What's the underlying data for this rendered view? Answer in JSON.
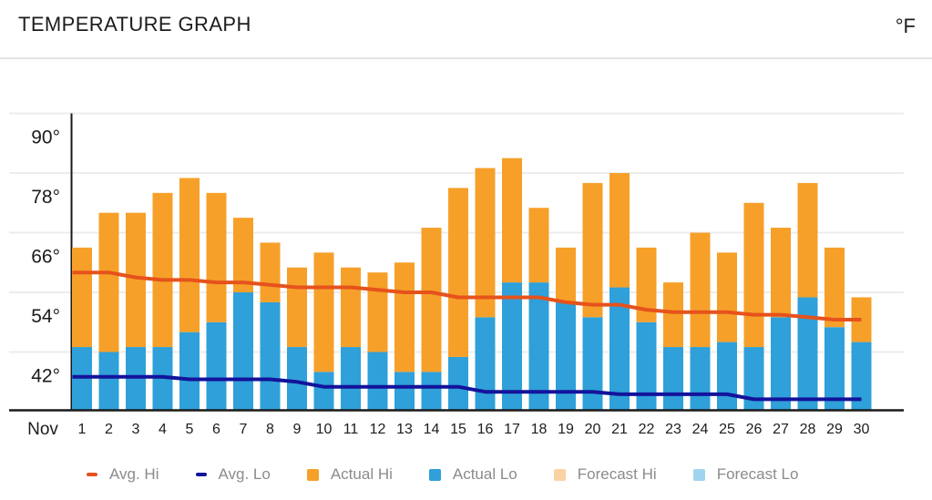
{
  "header": {
    "title": "TEMPERATURE GRAPH",
    "unit_label": "°F"
  },
  "y_axis": {
    "tick_labels": [
      "90°",
      "78°",
      "66°",
      "54°",
      "42°"
    ],
    "tick_values": [
      90,
      78,
      66,
      54,
      42
    ]
  },
  "x_axis": {
    "month_label": "Nov",
    "day_labels": [
      "1",
      "2",
      "3",
      "4",
      "5",
      "6",
      "7",
      "8",
      "9",
      "10",
      "11",
      "12",
      "13",
      "14",
      "15",
      "16",
      "17",
      "18",
      "19",
      "20",
      "21",
      "22",
      "23",
      "24",
      "25",
      "26",
      "27",
      "28",
      "29",
      "30"
    ]
  },
  "legend": {
    "items": [
      {
        "id": "avg-hi",
        "label": "Avg. Hi",
        "marker": "line",
        "color": "#E6521C"
      },
      {
        "id": "avg-lo",
        "label": "Avg. Lo",
        "marker": "line",
        "color": "#13139B"
      },
      {
        "id": "actual-hi",
        "label": "Actual Hi",
        "marker": "square",
        "color": "#F6A029"
      },
      {
        "id": "actual-lo",
        "label": "Actual Lo",
        "marker": "square",
        "color": "#2FA0D9"
      },
      {
        "id": "forecast-hi",
        "label": "Forecast Hi",
        "marker": "square",
        "color": "#FAD3A3"
      },
      {
        "id": "forecast-lo",
        "label": "Forecast Lo",
        "marker": "square",
        "color": "#A0D4EE"
      }
    ]
  },
  "chart_data": {
    "type": "bar",
    "title": "Temperature Graph",
    "unit": "°F",
    "month": "Nov",
    "x": [
      1,
      2,
      3,
      4,
      5,
      6,
      7,
      8,
      9,
      10,
      11,
      12,
      13,
      14,
      15,
      16,
      17,
      18,
      19,
      20,
      21,
      22,
      23,
      24,
      25,
      26,
      27,
      28,
      29,
      30
    ],
    "series": [
      {
        "name": "Actual Hi",
        "type": "bar",
        "color": "#F6A029",
        "values": [
          63,
          70,
          70,
          74,
          77,
          74,
          69,
          64,
          59,
          62,
          59,
          58,
          60,
          67,
          75,
          79,
          81,
          71,
          63,
          76,
          78,
          63,
          56,
          66,
          62,
          72,
          67,
          76,
          63,
          53
        ]
      },
      {
        "name": "Actual Lo",
        "type": "bar",
        "color": "#2FA0D9",
        "values": [
          43,
          42,
          43,
          43,
          46,
          48,
          54,
          52,
          43,
          38,
          43,
          42,
          38,
          38,
          41,
          49,
          56,
          56,
          52,
          49,
          55,
          48,
          43,
          43,
          44,
          43,
          49,
          53,
          47,
          44
        ]
      },
      {
        "name": "Avg. Hi",
        "type": "line",
        "color": "#E6521C",
        "values": [
          58,
          58,
          57,
          56.5,
          56.5,
          56,
          56,
          55.5,
          55,
          55,
          55,
          54.5,
          54,
          54,
          53,
          53,
          53,
          53,
          52,
          51.5,
          51.5,
          50.5,
          50,
          50,
          50,
          49.5,
          49.5,
          49,
          48.5,
          48.5
        ]
      },
      {
        "name": "Avg. Lo",
        "type": "line",
        "color": "#13139B",
        "values": [
          37,
          37,
          37,
          37,
          36.5,
          36.5,
          36.5,
          36.5,
          36,
          35,
          35,
          35,
          35,
          35,
          35,
          34,
          34,
          34,
          34,
          34,
          33.5,
          33.5,
          33.5,
          33.5,
          33.5,
          32.5,
          32.5,
          32.5,
          32.5,
          32.5
        ]
      },
      {
        "name": "Forecast Hi",
        "type": "bar",
        "color": "#FAD3A3",
        "values": []
      },
      {
        "name": "Forecast Lo",
        "type": "bar",
        "color": "#A0D4EE",
        "values": []
      }
    ],
    "ylim": [
      30.3,
      92.7
    ],
    "yticks": [
      42,
      54,
      66,
      78,
      90
    ],
    "grid": true,
    "legend_position": "bottom",
    "bar_semantics": "Blue bar spans from axis bottom to Actual Lo; orange bar stacks from Actual Lo up to Actual Hi; lines are the average hi/lo for the date."
  },
  "colors": {
    "actual_hi": "#F6A029",
    "actual_lo": "#2FA0D9",
    "avg_hi_line": "#E6521C",
    "avg_lo_line": "#13139B",
    "forecast_hi": "#FAD3A3",
    "forecast_lo": "#A0D4EE",
    "gridline": "#ECECEC",
    "axis": "#1A1A1A",
    "legend_text": "#8B8B8F",
    "divider": "#E3E3E3",
    "title_text": "#1C1C1C"
  }
}
